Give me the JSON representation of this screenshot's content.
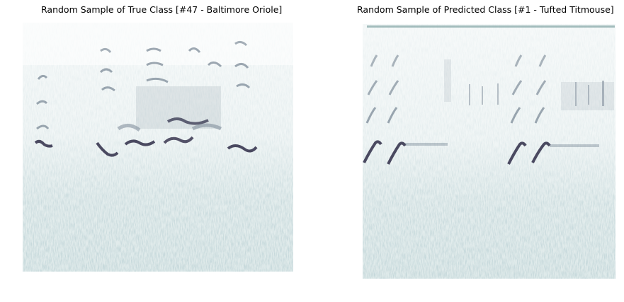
{
  "panels": [
    {
      "title": "Random Sample of True Class [#47 - Baltimore Oriole]",
      "image": "spectrogram"
    },
    {
      "title": "Random Sample of Predicted Class [#1 - Tufted Titmouse]",
      "image": "spectrogram"
    }
  ],
  "colors": {
    "noise": "#a9c7c7",
    "dark_mark": "#2e2b46",
    "mid_mark": "#5f6f80"
  }
}
